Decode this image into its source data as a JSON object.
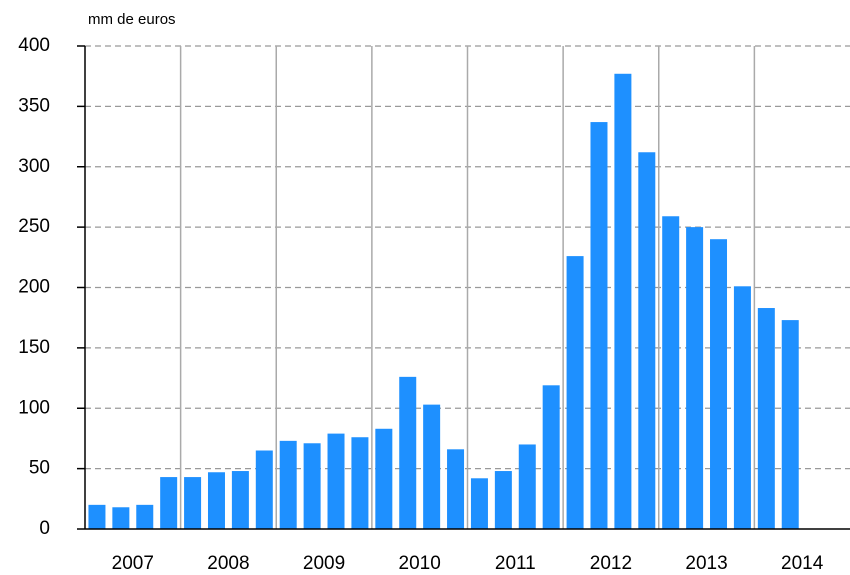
{
  "chart_data": {
    "type": "bar",
    "y_axis_label": "mm de euros",
    "group_labels": [
      "2007",
      "2008",
      "2009",
      "2010",
      "2011",
      "2012",
      "2013",
      "2014"
    ],
    "categories": [
      null,
      null,
      null,
      null,
      null,
      null,
      null,
      null,
      null,
      null,
      null,
      null,
      null,
      null,
      null,
      null,
      null,
      null,
      null,
      null,
      null,
      null,
      null,
      null,
      null,
      null,
      null,
      null,
      null,
      null
    ],
    "values": [
      20,
      18,
      20,
      43,
      43,
      47,
      48,
      65,
      73,
      71,
      79,
      76,
      83,
      126,
      103,
      66,
      42,
      48,
      70,
      119,
      226,
      337,
      377,
      312,
      259,
      250,
      240,
      201,
      183,
      173
    ],
    "color": "#1e90ff",
    "ylim": [
      0,
      400
    ],
    "yticks": [
      0,
      50,
      100,
      150,
      200,
      250,
      300,
      350,
      400
    ],
    "grid": true
  }
}
